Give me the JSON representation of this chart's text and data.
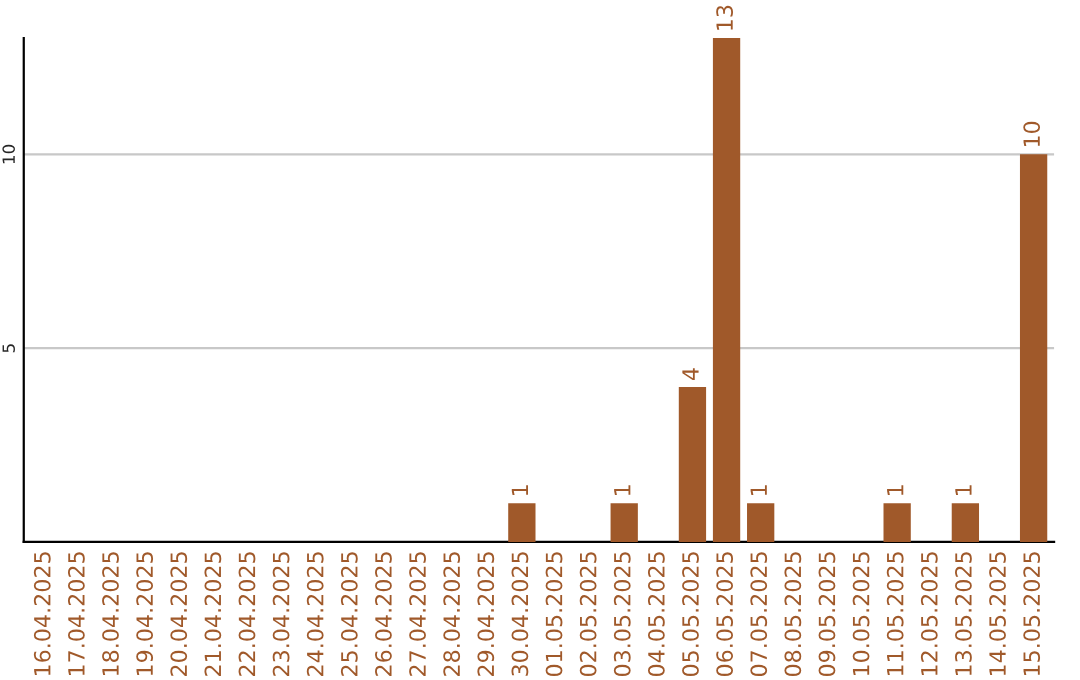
{
  "chart_data": {
    "type": "bar",
    "categories": [
      "16.04.2025",
      "17.04.2025",
      "18.04.2025",
      "19.04.2025",
      "20.04.2025",
      "21.04.2025",
      "22.04.2025",
      "23.04.2025",
      "24.04.2025",
      "25.04.2025",
      "26.04.2025",
      "27.04.2025",
      "28.04.2025",
      "29.04.2025",
      "30.04.2025",
      "01.05.2025",
      "02.05.2025",
      "03.05.2025",
      "04.05.2025",
      "05.05.2025",
      "06.05.2025",
      "07.05.2025",
      "08.05.2025",
      "09.05.2025",
      "10.05.2025",
      "11.05.2025",
      "12.05.2025",
      "13.05.2025",
      "14.05.2025",
      "15.05.2025"
    ],
    "values": [
      0,
      0,
      0,
      0,
      0,
      0,
      0,
      0,
      0,
      0,
      0,
      0,
      0,
      0,
      1,
      0,
      0,
      1,
      0,
      4,
      13,
      1,
      0,
      0,
      0,
      1,
      0,
      1,
      0,
      10
    ],
    "value_labels": [
      null,
      null,
      null,
      null,
      null,
      null,
      null,
      null,
      null,
      null,
      null,
      null,
      null,
      null,
      "1",
      null,
      null,
      "1",
      null,
      "4",
      "13",
      "1",
      null,
      null,
      null,
      "1",
      null,
      "1",
      null,
      "10"
    ],
    "color": "#a0592a",
    "ylim": [
      0,
      13
    ],
    "yticks": [
      5,
      10
    ],
    "grid": "y"
  }
}
